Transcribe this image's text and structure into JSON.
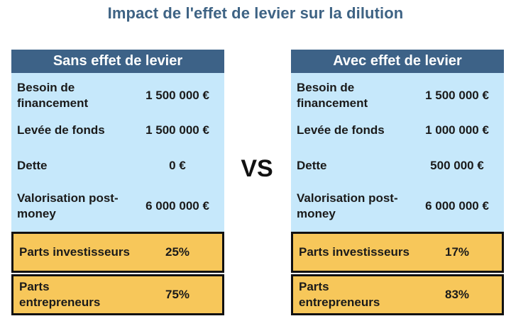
{
  "title": "Impact de l'effet de levier sur la dilution",
  "vs_label": "VS",
  "panels": [
    {
      "header": "Sans effet de levier",
      "rows": [
        {
          "label": "Besoin de financement",
          "value": "1 500 000 €"
        },
        {
          "label": "Levée de fonds",
          "value": "1 500 000 €"
        },
        {
          "label": "Dette",
          "value": "0 €"
        },
        {
          "label": "Valorisation post-money",
          "value": "6 000 000 €"
        }
      ],
      "shares": [
        {
          "label": "Parts investisseurs",
          "value": "25%"
        },
        {
          "label": "Parts entrepreneurs",
          "value": "75%"
        }
      ]
    },
    {
      "header": "Avec effet de levier",
      "rows": [
        {
          "label": "Besoin de financement",
          "value": "1 500 000 €"
        },
        {
          "label": "Levée de fonds",
          "value": "1 000 000 €"
        },
        {
          "label": "Dette",
          "value": "500 000 €"
        },
        {
          "label": "Valorisation post-money",
          "value": "6 000 000 €"
        }
      ],
      "shares": [
        {
          "label": "Parts investisseurs",
          "value": "17%"
        },
        {
          "label": "Parts entrepreneurs",
          "value": "83%"
        }
      ]
    }
  ],
  "colors": {
    "title": "#3e6384",
    "header_bg": "#3d6287",
    "body_bg": "#c6e8fb",
    "shares_bg": "#f7c75a"
  }
}
